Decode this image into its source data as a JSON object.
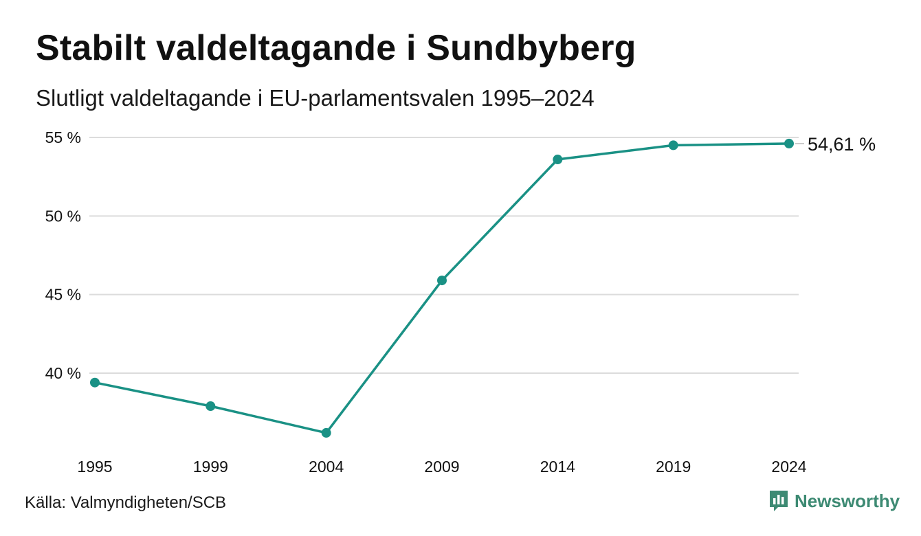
{
  "title": "Stabilt valdeltagande i Sundbyberg",
  "subtitle": "Slutligt valdeltagande i EU-parlamentsvalen 1995–2024",
  "source": "Källa: Valmyndigheten/SCB",
  "brand": {
    "name": "Newsworthy",
    "icon": "newsworthy-logo-icon",
    "color": "#3d8a73"
  },
  "colors": {
    "line": "#1a9185",
    "grid": "#dcdcdc",
    "text": "#111111"
  },
  "chart_data": {
    "type": "line",
    "title": "Stabilt valdeltagande i Sundbyberg",
    "subtitle": "Slutligt valdeltagande i EU-parlamentsvalen 1995–2024",
    "xlabel": "",
    "ylabel": "",
    "x": [
      "1995",
      "1999",
      "2004",
      "2009",
      "2014",
      "2019",
      "2024"
    ],
    "series": [
      {
        "values": [
          39.4,
          37.9,
          36.2,
          45.9,
          53.6,
          54.5,
          54.61
        ]
      }
    ],
    "ylim": [
      35,
      55
    ],
    "yticks": [
      40,
      45,
      50,
      55
    ],
    "ytick_labels": [
      "40 %",
      "45 %",
      "50 %",
      "55 %"
    ],
    "xtick_labels": [
      "1995",
      "1999",
      "2004",
      "2009",
      "2014",
      "2019",
      "2024"
    ],
    "end_label": "54,61 %",
    "grid": true,
    "legend": "none"
  }
}
